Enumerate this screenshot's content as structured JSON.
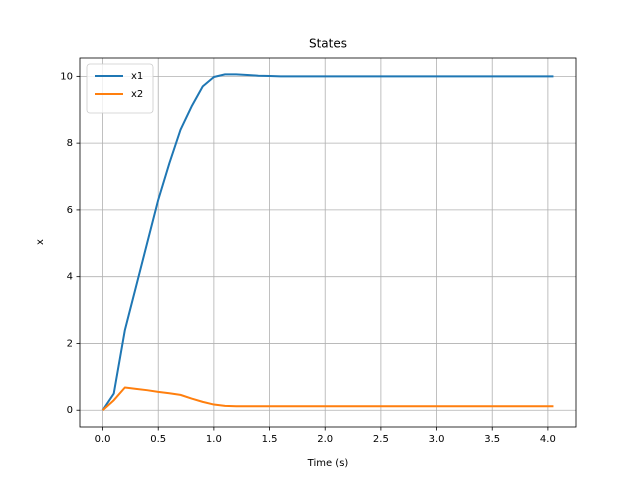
{
  "chart_data": {
    "type": "line",
    "title": "States",
    "xlabel": "Time (s)",
    "ylabel": "x",
    "x": [
      0,
      0.1,
      0.2,
      0.3,
      0.4,
      0.5,
      0.6,
      0.7,
      0.8,
      0.9,
      1.0,
      1.1,
      1.2,
      1.3,
      1.4,
      1.5,
      1.6,
      2.0,
      2.5,
      3.0,
      3.5,
      4.0,
      4.05
    ],
    "series": [
      {
        "name": "x1",
        "color": "#1f77b4",
        "values": [
          0,
          0.5,
          2.4,
          3.7,
          5.0,
          6.3,
          7.4,
          8.4,
          9.1,
          9.7,
          9.98,
          10.06,
          10.06,
          10.04,
          10.02,
          10.01,
          10.0,
          10.0,
          10.0,
          10.0,
          10.0,
          10.0,
          10.0
        ]
      },
      {
        "name": "x2",
        "color": "#ff7f0e",
        "values": [
          0,
          0.3,
          0.68,
          0.64,
          0.6,
          0.55,
          0.51,
          0.46,
          0.35,
          0.25,
          0.17,
          0.13,
          0.12,
          0.12,
          0.12,
          0.12,
          0.12,
          0.12,
          0.12,
          0.12,
          0.12,
          0.12,
          0.12
        ]
      }
    ],
    "xlim": [
      -0.2025,
      4.2525
    ],
    "xticks": [
      {
        "value": 0,
        "label": "0.0"
      },
      {
        "value": 0.5,
        "label": "0.5"
      },
      {
        "value": 1,
        "label": "1.0"
      },
      {
        "value": 1.5,
        "label": "1.5"
      },
      {
        "value": 2,
        "label": "2.0"
      },
      {
        "value": 2.5,
        "label": "2.5"
      },
      {
        "value": 3,
        "label": "3.0"
      },
      {
        "value": 3.5,
        "label": "3.5"
      },
      {
        "value": 4,
        "label": "4.0"
      }
    ],
    "ylim": [
      -0.5025,
      10.55
    ],
    "yticks": [
      0,
      2,
      4,
      6,
      8,
      10
    ],
    "grid": true,
    "legend": "upper left"
  }
}
